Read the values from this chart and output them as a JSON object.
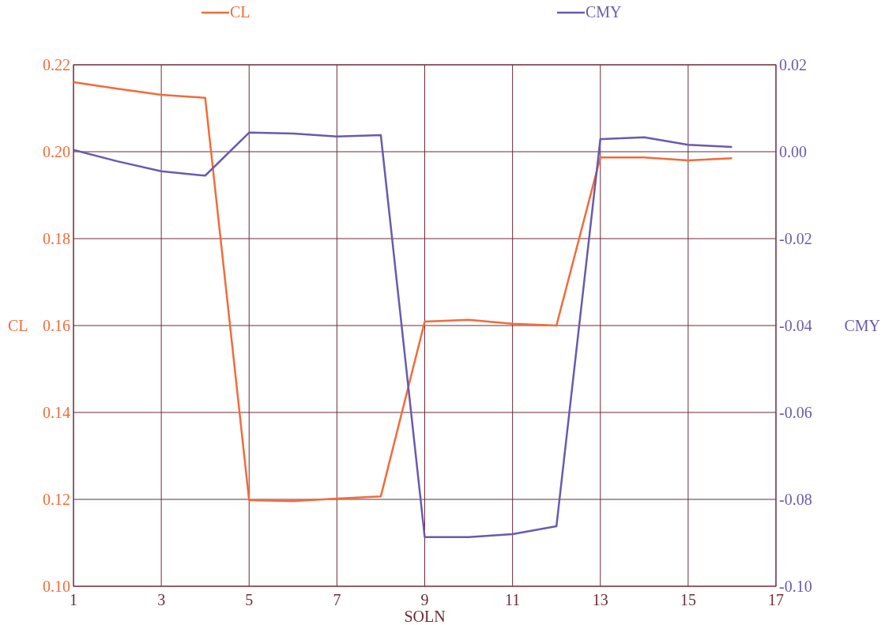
{
  "chart_data": {
    "type": "line",
    "xlabel": "SOLN",
    "ylabel": "CL",
    "y2label": "CMY",
    "x": [
      1,
      2,
      3,
      4,
      5,
      6,
      7,
      8,
      9,
      10,
      11,
      12,
      13,
      14,
      15,
      16
    ],
    "xlim": [
      1,
      17
    ],
    "xticks": [
      1,
      3,
      5,
      7,
      9,
      11,
      13,
      15,
      17
    ],
    "ylim": [
      0.1,
      0.22
    ],
    "yticks": [
      {
        "value": 0.1,
        "label": "0.10"
      },
      {
        "value": 0.12,
        "label": "0.12"
      },
      {
        "value": 0.14,
        "label": "0.14"
      },
      {
        "value": 0.16,
        "label": "0.16"
      },
      {
        "value": 0.18,
        "label": "0.18"
      },
      {
        "value": 0.2,
        "label": "0.20"
      },
      {
        "value": 0.22,
        "label": "0.22"
      }
    ],
    "y2lim": [
      -0.1,
      0.02
    ],
    "y2ticks": [
      {
        "value": -0.1,
        "label": "-0.10"
      },
      {
        "value": -0.08,
        "label": "-0.08"
      },
      {
        "value": -0.06,
        "label": "-0.06"
      },
      {
        "value": -0.04,
        "label": "-0.04"
      },
      {
        "value": -0.02,
        "label": "-0.02"
      },
      {
        "value": 0,
        "label": "0.00"
      },
      {
        "value": 0.02,
        "label": "0.02"
      }
    ],
    "grid": true,
    "legend": "top",
    "marker": "none",
    "line_style": "solid",
    "series": [
      {
        "name": "CL",
        "color": "#f26b3a",
        "values": [
          0.216,
          0.2145,
          0.2131,
          0.2124,
          0.1198,
          0.1196,
          0.1202,
          0.1207,
          0.1609,
          0.1613,
          0.1604,
          0.16,
          0.1987,
          0.1987,
          0.198,
          0.1985
        ]
      },
      {
        "name": "CMY",
        "color": "#6a5aad",
        "axis": "y2",
        "values": [
          0.0004,
          -0.0022,
          -0.0045,
          -0.0055,
          0.0044,
          0.0042,
          0.0035,
          0.0038,
          -0.0887,
          -0.0887,
          -0.088,
          -0.0862,
          0.0029,
          0.0033,
          0.0016,
          0.0011
        ]
      }
    ]
  }
}
